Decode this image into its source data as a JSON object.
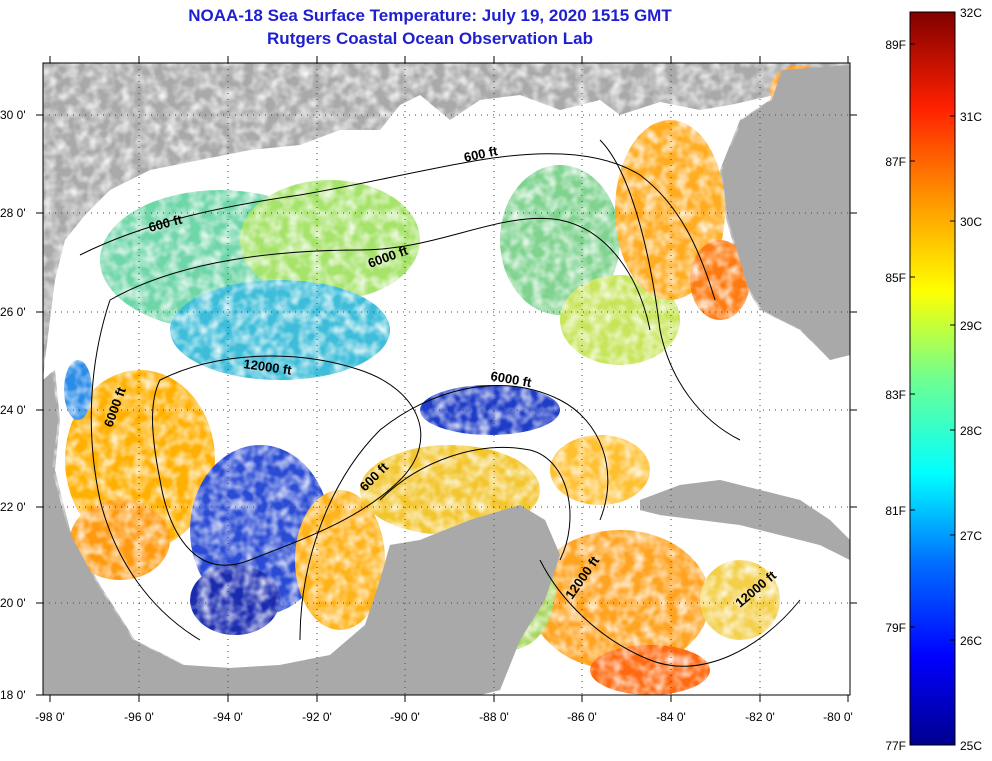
{
  "header": {
    "title": "NOAA-18 Sea Surface Temperature:  July 19, 2020 1515 GMT",
    "subtitle": "Rutgers Coastal Ocean Observation Lab"
  },
  "colors": {
    "land": "#a9a9a9",
    "cloud": "#ffffff",
    "contour": "#000000",
    "title": "#1f1fd0"
  },
  "map": {
    "lat_ticks": [
      "30 0'",
      "28 0'",
      "26 0'",
      "24 0'",
      "22 0'",
      "20 0'",
      "18 0'"
    ],
    "lon_ticks": [
      "-98 0'",
      "-96 0'",
      "-94 0'",
      "-92 0'",
      "-90 0'",
      "-88 0'",
      "-86 0'",
      "-84 0'",
      "-82 0'",
      "-80 0'"
    ],
    "contour_labels": [
      "600 ft",
      "600 ft",
      "6000 ft",
      "12000 ft",
      "6000 ft",
      "6000 ft",
      "600 ft",
      "12000 ft",
      "12000 ft"
    ]
  },
  "colorbar": {
    "celsius_labels": [
      "32C",
      "31C",
      "30C",
      "29C",
      "28C",
      "27C",
      "26C",
      "25C"
    ],
    "fahrenheit_labels": [
      "89F",
      "87F",
      "85F",
      "83F",
      "81F",
      "79F",
      "77F"
    ],
    "celsius_range": [
      25,
      32
    ]
  }
}
